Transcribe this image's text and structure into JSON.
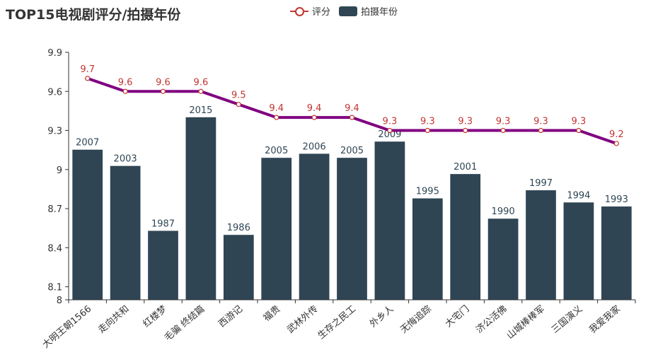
{
  "chart_data": {
    "type": "bar+line",
    "title": "TOP15电视剧评分/拍摄年份",
    "categories": [
      "大明王朝1566",
      "走向共和",
      "红楼梦",
      "毛骗 终结篇",
      "西游记",
      "福贵",
      "武林外传",
      "生存之民工",
      "外乡人",
      "无悔追踪",
      "大宅门",
      "济公活佛",
      "山城棒棒军",
      "三国演义",
      "我爱我家"
    ],
    "series": [
      {
        "name": "评分",
        "type": "line",
        "values": [
          9.7,
          9.6,
          9.6,
          9.6,
          9.5,
          9.4,
          9.4,
          9.4,
          9.3,
          9.3,
          9.3,
          9.3,
          9.3,
          9.3,
          9.2
        ],
        "labels": [
          "9.7",
          "9.6",
          "9.6",
          "9.6",
          "9.5",
          "9.4",
          "9.4",
          "9.4",
          "9.3",
          "9.3",
          "9.3",
          "9.3",
          "9.3",
          "9.3",
          "9.2"
        ]
      },
      {
        "name": "拍摄年份",
        "type": "bar",
        "values": [
          2007,
          2003,
          1987,
          2015,
          1986,
          2005,
          2006,
          2005,
          2009,
          1995,
          2001,
          1990,
          1997,
          1994,
          1993
        ]
      }
    ],
    "y_axis": {
      "min": 8,
      "max": 9.9,
      "ticks": [
        "8",
        "8.1",
        "8.4",
        "8.7",
        "9",
        "9.3",
        "9.6",
        "9.9"
      ]
    },
    "bar_scale": {
      "min": 1970,
      "max": 2031
    },
    "colors": {
      "line": "#800080",
      "line_label": "#c23531",
      "marker": "#c23531",
      "bar": "#2f4554",
      "bar_label": "#2f4554",
      "axis": "#333333"
    },
    "legend": {
      "position": "top-center"
    }
  }
}
